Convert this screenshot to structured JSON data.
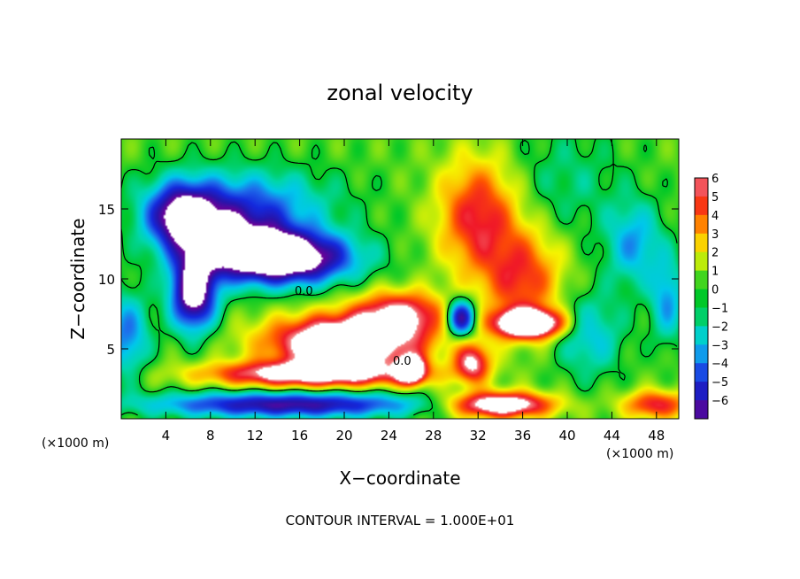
{
  "chart_data": {
    "type": "heatmap",
    "title": "zonal velocity",
    "xlabel": "X−coordinate",
    "ylabel": "Z−coordinate",
    "x_unit_label": "(×1000 m)",
    "x_unit_label_right": "(×1000 m)",
    "footnote": "CONTOUR INTERVAL = 1.000E+01",
    "xlim": [
      0,
      50
    ],
    "ylim": [
      0,
      20
    ],
    "x_ticks": [
      4,
      8,
      12,
      16,
      20,
      24,
      28,
      32,
      36,
      40,
      44,
      48
    ],
    "y_ticks": [
      5,
      10,
      15
    ],
    "colorbar": {
      "ticks": [
        6,
        5,
        4,
        3,
        2,
        1,
        0,
        -1,
        -2,
        -3,
        -4,
        -5,
        -6
      ],
      "range": [
        -6,
        6
      ],
      "out_of_range_color": "#ffffff"
    },
    "contour_labels": [
      "0.0",
      "0.0"
    ],
    "features": [
      {
        "x": 5.5,
        "z": 14.5,
        "value": -6.2,
        "sx": 3.0,
        "sz": 2.2
      },
      {
        "x": 10.0,
        "z": 13.0,
        "value": -4.5,
        "sx": 5.5,
        "sz": 2.5
      },
      {
        "x": 14.5,
        "z": 11.5,
        "value": -9.0,
        "sx": 6.0,
        "sz": 1.8
      },
      {
        "x": 6.5,
        "z": 9.0,
        "value": -8.0,
        "sx": 2.0,
        "sz": 2.6
      },
      {
        "x": 11.0,
        "z": 15.5,
        "value": -3.0,
        "sx": 8.0,
        "sz": 2.5
      },
      {
        "x": 20.0,
        "z": 5.5,
        "value": 9.0,
        "sx": 6.5,
        "sz": 1.8
      },
      {
        "x": 25.0,
        "z": 7.5,
        "value": 5.5,
        "sx": 4.0,
        "sz": 1.6
      },
      {
        "x": 17.0,
        "z": 3.2,
        "value": 7.0,
        "sx": 9.0,
        "sz": 0.9
      },
      {
        "x": 26.0,
        "z": 3.5,
        "value": 8.0,
        "sx": 1.2,
        "sz": 1.0
      },
      {
        "x": 15.0,
        "z": 1.0,
        "value": -6.0,
        "sx": 12.0,
        "sz": 0.9
      },
      {
        "x": 34.0,
        "z": 1.0,
        "value": 8.0,
        "sx": 4.5,
        "sz": 0.9
      },
      {
        "x": 32.0,
        "z": 14.5,
        "value": 4.5,
        "sx": 3.5,
        "sz": 4.0
      },
      {
        "x": 36.0,
        "z": 10.0,
        "value": 4.0,
        "sx": 3.5,
        "sz": 3.5
      },
      {
        "x": 36.5,
        "z": 6.8,
        "value": 9.5,
        "sx": 3.0,
        "sz": 1.0
      },
      {
        "x": 31.5,
        "z": 4.0,
        "value": 5.5,
        "sx": 1.6,
        "sz": 1.4
      },
      {
        "x": 30.5,
        "z": 7.2,
        "value": -7.0,
        "sx": 1.3,
        "sz": 1.3
      },
      {
        "x": 46.0,
        "z": 12.5,
        "value": -3.0,
        "sx": 2.5,
        "sz": 3.0
      },
      {
        "x": 42.0,
        "z": 6.0,
        "value": -2.5,
        "sx": 3.0,
        "sz": 3.0
      },
      {
        "x": 0.5,
        "z": 6.0,
        "value": -3.5,
        "sx": 2.0,
        "sz": 3.0
      },
      {
        "x": 49.0,
        "z": 8.5,
        "value": -3.0,
        "sx": 1.5,
        "sz": 3.0
      },
      {
        "x": 48.0,
        "z": 1.0,
        "value": 4.5,
        "sx": 3.0,
        "sz": 1.0
      },
      {
        "x": 40.0,
        "z": 17.0,
        "value": -1.2,
        "sx": 5.0,
        "sz": 4.0
      }
    ]
  }
}
